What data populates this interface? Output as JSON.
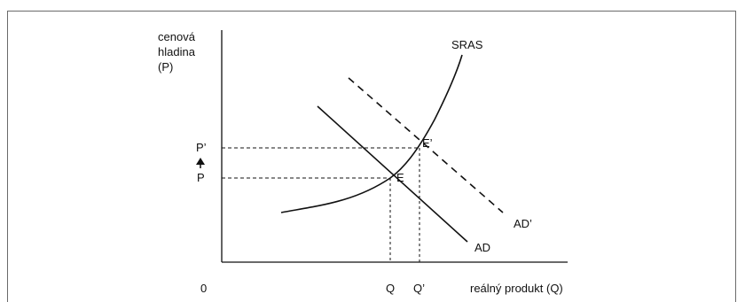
{
  "diagram": {
    "y_axis_label_lines": [
      "cenová",
      "hladina",
      "(P)"
    ],
    "x_axis_label": "reálný produkt (Q)",
    "origin_label": "0",
    "price_labels": {
      "new": "P’",
      "old": "P",
      "arrow": "up"
    },
    "quantity_labels": {
      "old": "Q",
      "new": "Q’"
    },
    "curves": {
      "sras": "SRAS",
      "ad": "AD",
      "ad_shifted": "AD’"
    },
    "equilibria": {
      "initial": "E",
      "new": "E’"
    },
    "colors": {
      "line": "#111111",
      "frame": "#6b6b6b"
    }
  }
}
